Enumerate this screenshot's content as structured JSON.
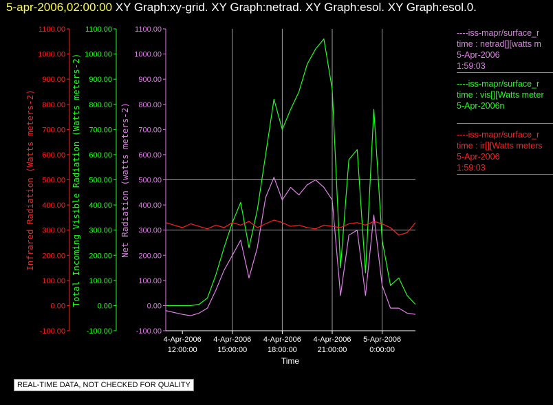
{
  "title_bar": {
    "first": "5-apr-2006,02:00:00",
    "rest": " XY Graph:xy-grid.  XY Graph:netrad.  XY Graph:esol.  XY Graph:esol.0."
  },
  "colors": {
    "ir": "#ff2020",
    "vis": "#20ff20",
    "netrad": "#e080e8",
    "grid": "#a0a0a0"
  },
  "chart_data": {
    "type": "line",
    "xlabel": "Time",
    "xlim": [
      "2006-04-04 11:00",
      "2006-04-05 02:00"
    ],
    "x_ticks": [
      {
        "line1": "4-Apr-2006",
        "line2": "12:00:00"
      },
      {
        "line1": "4-Apr-2006",
        "line2": "15:00:00"
      },
      {
        "line1": "4-Apr-2006",
        "line2": "18:00:00"
      },
      {
        "line1": "4-Apr-2006",
        "line2": "21:00:00"
      },
      {
        "line1": "5-Apr-2006",
        "line2": "0:00:00"
      }
    ],
    "y_ticks": [
      "1100.00",
      "1000.00",
      "900.00",
      "800.00",
      "700.00",
      "600.00",
      "500.00",
      "400.00",
      "300.00",
      "200.00",
      "100.00",
      "0.00",
      "-100.00"
    ],
    "ylim": [
      -100,
      1100
    ],
    "axes": [
      {
        "label": "Infrared Radiation (Watts meters-2)",
        "color": "#ff2020"
      },
      {
        "label": "Total Incoming Visible Radiation (Watts meters-2)",
        "color": "#20ff20"
      },
      {
        "label": "Net Radiation (watts meters-2)",
        "color": "#e080e8"
      }
    ],
    "series": [
      {
        "name": "ir",
        "color": "#ff2020",
        "x_hours": [
          11.0,
          11.5,
          12.0,
          12.5,
          13.0,
          13.5,
          14.0,
          14.5,
          15.0,
          15.5,
          16.0,
          16.5,
          17.0,
          17.5,
          18.0,
          18.5,
          19.0,
          19.5,
          20.0,
          20.5,
          21.0,
          21.5,
          22.0,
          22.5,
          23.0,
          23.5,
          24.0,
          24.5,
          25.0,
          25.5,
          26.0
        ],
        "values": [
          330,
          320,
          310,
          325,
          315,
          305,
          320,
          310,
          330,
          320,
          335,
          310,
          325,
          340,
          330,
          315,
          320,
          310,
          305,
          320,
          315,
          310,
          325,
          330,
          320,
          335,
          325,
          310,
          280,
          290,
          330
        ]
      },
      {
        "name": "vis",
        "color": "#20ff20",
        "x_hours": [
          11.0,
          12.0,
          12.5,
          13.0,
          13.5,
          14.0,
          14.5,
          15.0,
          15.5,
          16.0,
          16.5,
          17.0,
          17.5,
          18.0,
          18.5,
          19.0,
          19.5,
          20.0,
          20.5,
          21.0,
          21.5,
          22.0,
          22.5,
          23.0,
          23.5,
          24.0,
          24.5,
          25.0,
          25.5,
          26.0
        ],
        "values": [
          0,
          0,
          0,
          5,
          30,
          120,
          230,
          330,
          410,
          230,
          380,
          600,
          820,
          700,
          780,
          850,
          960,
          1020,
          1060,
          860,
          150,
          580,
          620,
          130,
          780,
          260,
          80,
          110,
          40,
          5
        ]
      },
      {
        "name": "netrad",
        "color": "#e080e8",
        "x_hours": [
          11.0,
          12.0,
          12.5,
          13.0,
          13.5,
          14.0,
          14.5,
          15.0,
          15.5,
          16.0,
          16.5,
          17.0,
          17.5,
          18.0,
          18.5,
          19.0,
          19.5,
          20.0,
          20.5,
          21.0,
          21.5,
          22.0,
          22.5,
          23.0,
          23.5,
          24.0,
          24.5,
          25.0,
          25.5,
          26.0
        ],
        "values": [
          -20,
          -35,
          -40,
          -30,
          -10,
          60,
          140,
          200,
          260,
          110,
          230,
          430,
          510,
          420,
          470,
          440,
          480,
          500,
          470,
          420,
          40,
          280,
          300,
          40,
          360,
          80,
          -10,
          -10,
          -30,
          -35
        ]
      }
    ]
  },
  "legend": [
    {
      "line1": "----iss-mapr/surface_r",
      "line2": "time : netrad[][watts m",
      "line3": "5-Apr-2006",
      "line4": "1:59:03",
      "color": "#e080e8"
    },
    {
      "line1": "----iss-mapr/surface_r",
      "line2": "time : vis[][Watts meter",
      "line3": "5-Apr-2006n",
      "line4": "",
      "color": "#20ff20"
    },
    {
      "line1": "----iss-mapr/surface_r",
      "line2": "time : ir[][Watts meters",
      "line3": "5-Apr-2006",
      "line4": "1:59:03",
      "color": "#ff2020"
    }
  ],
  "disclaimer": "REAL-TIME DATA, NOT CHECKED FOR QUALITY"
}
